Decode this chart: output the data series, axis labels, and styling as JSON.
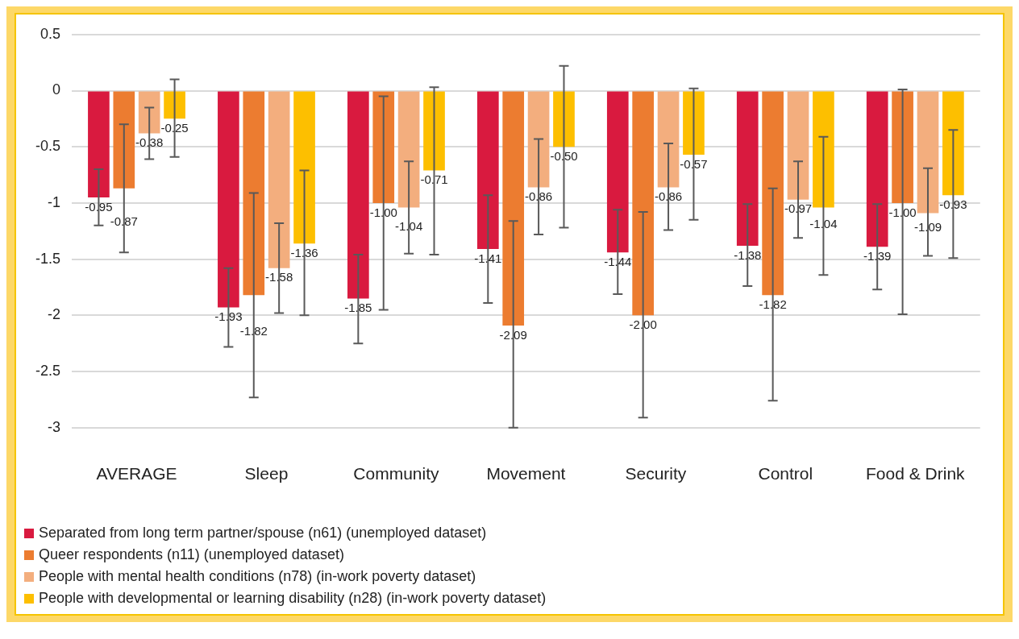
{
  "chart_data": {
    "type": "bar",
    "categories": [
      "AVERAGE",
      "Sleep",
      "Community",
      "Movement",
      "Security",
      "Control",
      "Food & Drink"
    ],
    "series": [
      {
        "name": "Separated from long term partner/spouse (n61) (unemployed dataset)",
        "color": "#d91a3f",
        "values": [
          -0.95,
          -1.93,
          -1.85,
          -1.41,
          -1.44,
          -1.38,
          -1.39
        ],
        "value_labels": [
          "-0.95",
          "-1.93",
          "-1.85",
          "-1.41",
          "-1.44",
          "-1.38",
          "-1.39"
        ],
        "errors": [
          [
            -1.2,
            -0.7
          ],
          [
            -2.28,
            -1.58
          ],
          [
            -2.25,
            -1.46
          ],
          [
            -1.89,
            -0.93
          ],
          [
            -1.81,
            -1.06
          ],
          [
            -1.74,
            -1.01
          ],
          [
            -1.77,
            -1.01
          ]
        ]
      },
      {
        "name": "Queer respondents (n11) (unemployed dataset)",
        "color": "#ec7c30",
        "values": [
          -0.87,
          -1.82,
          -1.0,
          -2.09,
          -2.0,
          -1.82,
          -1.0
        ],
        "value_labels": [
          "-0.87",
          "-1.82",
          "-1.00",
          "-2.09",
          "-2.00",
          "-1.82",
          "-1.00"
        ],
        "errors": [
          [
            -1.44,
            -0.3
          ],
          [
            -2.73,
            -0.91
          ],
          [
            -1.95,
            -0.05
          ],
          [
            -3.0,
            -1.16
          ],
          [
            -2.91,
            -1.08
          ],
          [
            -2.76,
            -0.87
          ],
          [
            -1.99,
            0.01
          ]
        ]
      },
      {
        "name": "People with mental health conditions (n78) (in-work poverty dataset)",
        "color": "#f3ae7e",
        "values": [
          -0.38,
          -1.58,
          -1.04,
          -0.86,
          -0.86,
          -0.97,
          -1.09
        ],
        "value_labels": [
          "-0.38",
          "-1.58",
          "-1.04",
          "-0.86",
          "-0.86",
          "-0.97",
          "-1.09"
        ],
        "errors": [
          [
            -0.61,
            -0.15
          ],
          [
            -1.98,
            -1.18
          ],
          [
            -1.45,
            -0.63
          ],
          [
            -1.28,
            -0.43
          ],
          [
            -1.24,
            -0.47
          ],
          [
            -1.31,
            -0.63
          ],
          [
            -1.47,
            -0.69
          ]
        ]
      },
      {
        "name": "People with developmental or learning disability (n28) (in-work poverty dataset)",
        "color": "#fdbf00",
        "values": [
          -0.25,
          -1.36,
          -0.71,
          -0.5,
          -0.57,
          -1.04,
          -0.93
        ],
        "value_labels": [
          "-0.25",
          "-1.36",
          "-0.71",
          "-0.50",
          "-0.57",
          "-1.04",
          "-0.93"
        ],
        "errors": [
          [
            -0.59,
            0.1
          ],
          [
            -2.0,
            -0.71
          ],
          [
            -1.46,
            0.03
          ],
          [
            -1.22,
            0.22
          ],
          [
            -1.15,
            0.02
          ],
          [
            -1.64,
            -0.41
          ],
          [
            -1.49,
            -0.35
          ]
        ]
      }
    ],
    "ylim": [
      -3,
      0.5
    ],
    "yticks": [
      0.5,
      0,
      -0.5,
      -1,
      -1.5,
      -2,
      -2.5,
      -3
    ],
    "grid": "y",
    "legend": "bottom"
  }
}
